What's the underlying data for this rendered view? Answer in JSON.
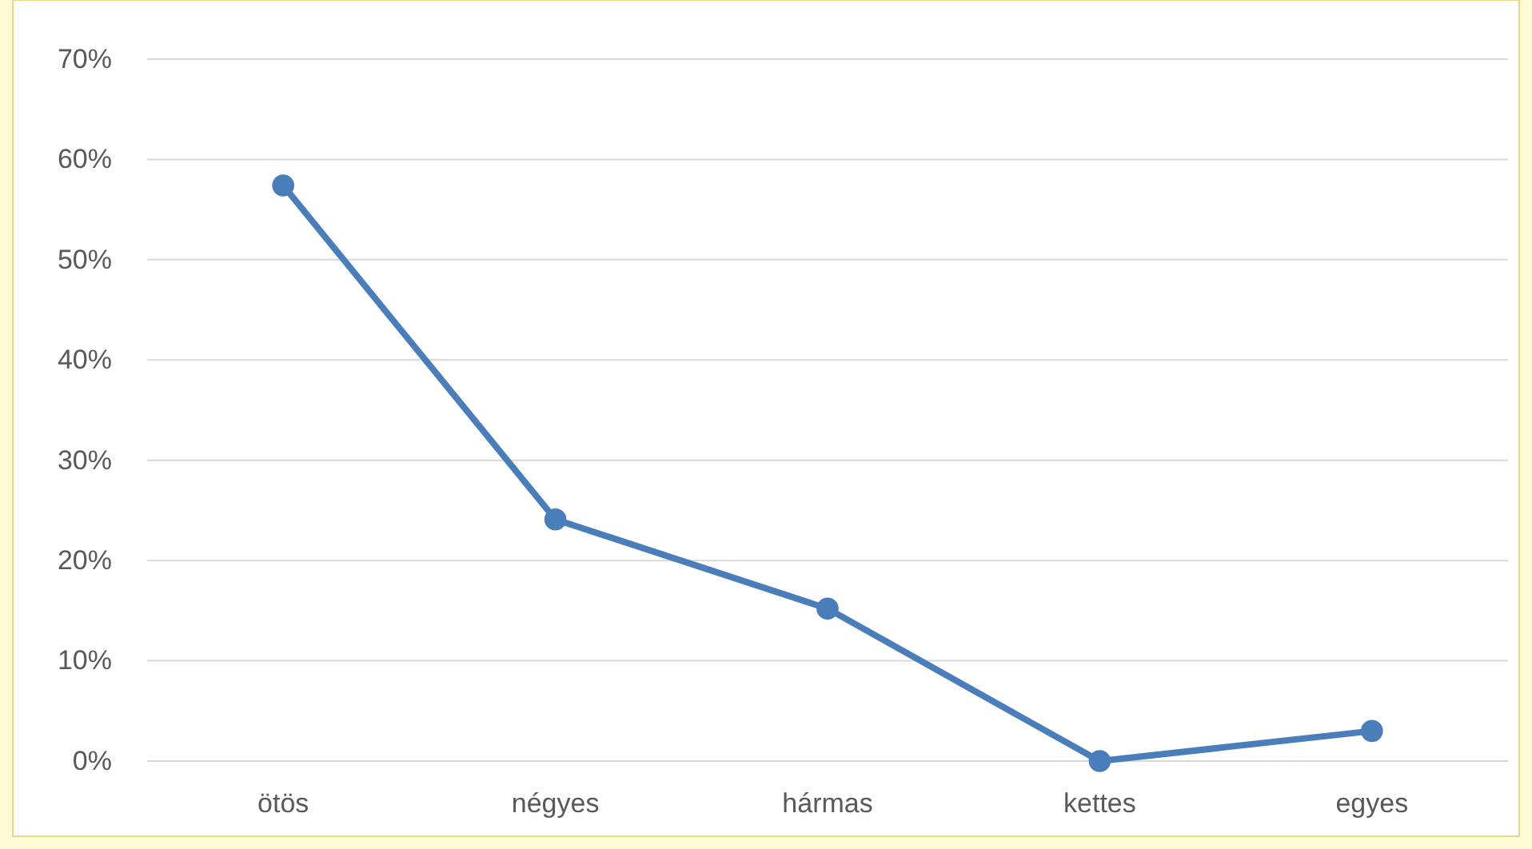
{
  "chart_data": {
    "type": "line",
    "categories": [
      "ötös",
      "négyes",
      "hármas",
      "kettes",
      "egyes"
    ],
    "series": [
      {
        "color": "#4a7ebb",
        "values": [
          57.4,
          24.1,
          15.2,
          0,
          3.0
        ]
      }
    ],
    "ylim": [
      0,
      70
    ],
    "yticks": [
      {
        "value": 0,
        "label": "0%"
      },
      {
        "value": 10,
        "label": "10%"
      },
      {
        "value": 20,
        "label": "20%"
      },
      {
        "value": 30,
        "label": "30%"
      },
      {
        "value": 40,
        "label": "40%"
      },
      {
        "value": 50,
        "label": "50%"
      },
      {
        "value": 60,
        "label": "60%"
      },
      {
        "value": 70,
        "label": "70%"
      }
    ],
    "grid": "y",
    "marker": "circle",
    "line_style": "solid"
  }
}
